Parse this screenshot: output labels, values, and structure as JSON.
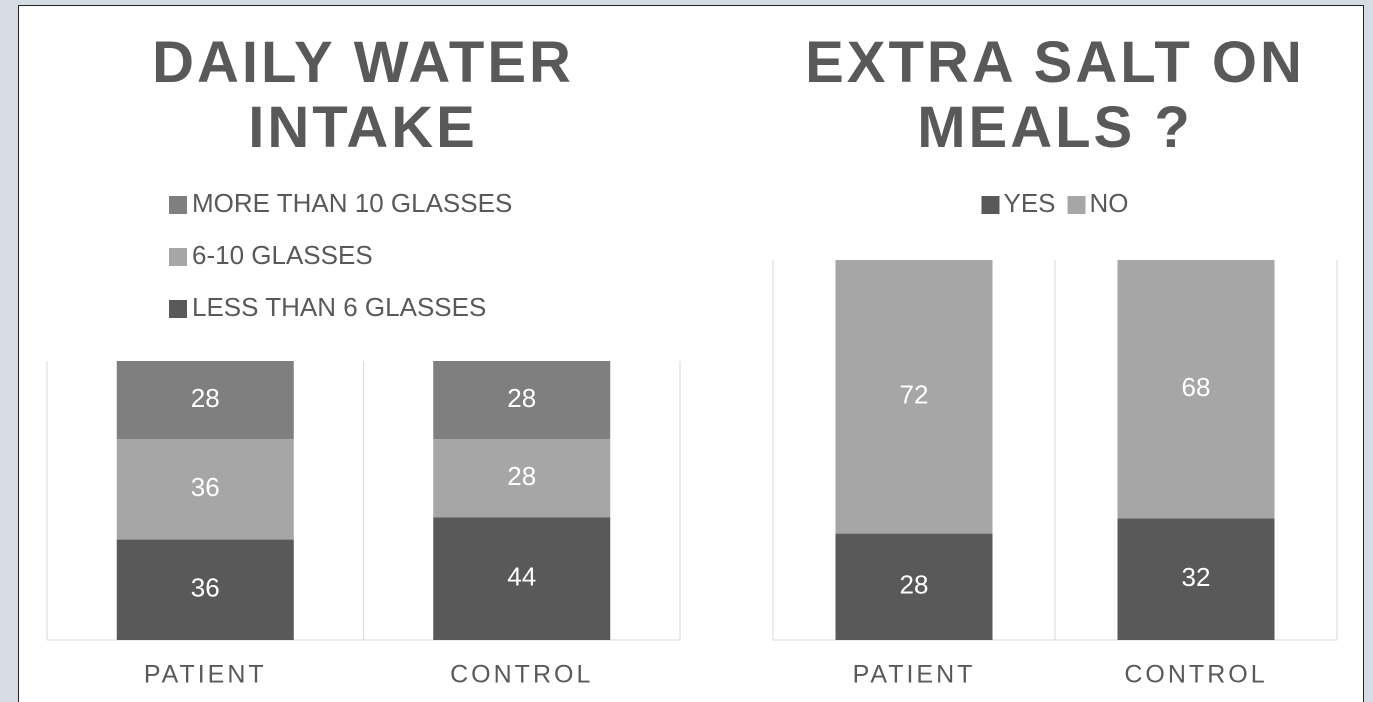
{
  "chart_data": [
    {
      "type": "bar",
      "stacked": true,
      "title": "DAILY WATER INTAKE",
      "categories": [
        "PATIENT",
        "CONTROL"
      ],
      "series": [
        {
          "name": "LESS THAN 6 GLASSES",
          "color": "#595959",
          "values": [
            36,
            44
          ]
        },
        {
          "name": "6-10 GLASSES",
          "color": "#a6a6a6",
          "values": [
            36,
            28
          ]
        },
        {
          "name": "MORE THAN 10 GLASSES",
          "color": "#7f7f7f",
          "values": [
            28,
            28
          ]
        }
      ],
      "ylim": [
        0,
        100
      ],
      "legend": "top"
    },
    {
      "type": "bar",
      "stacked": true,
      "title": "EXTRA SALT ON MEALS ?",
      "categories": [
        "PATIENT",
        "CONTROL"
      ],
      "series": [
        {
          "name": "YES",
          "color": "#595959",
          "values": [
            28,
            32
          ]
        },
        {
          "name": "NO",
          "color": "#a6a6a6",
          "values": [
            72,
            68
          ]
        }
      ],
      "ylim": [
        0,
        100
      ],
      "legend": "top"
    }
  ]
}
